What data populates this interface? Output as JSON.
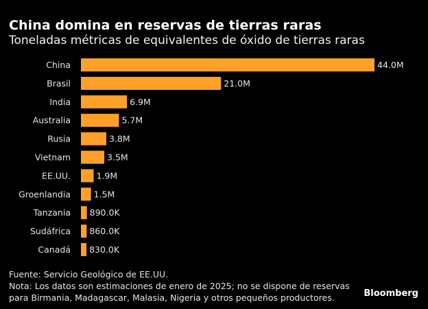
{
  "chart_data": {
    "type": "bar",
    "orientation": "horizontal",
    "title": "China domina en reservas de tierras raras",
    "subtitle": "Toneladas métricas de equivalentes de óxido de tierras raras",
    "xlabel": "",
    "ylabel": "",
    "categories": [
      "China",
      "Brasil",
      "India",
      "Australia",
      "Rusia",
      "Vietnam",
      "EE.UU.",
      "Groenlandia",
      "Tanzania",
      "Sudáfrica",
      "Canadá"
    ],
    "values": [
      44000000,
      21000000,
      6900000,
      5700000,
      3800000,
      3500000,
      1900000,
      1500000,
      890000,
      860000,
      830000
    ],
    "data_labels": [
      "44.0M",
      "21.0M",
      "6.9M",
      "5.7M",
      "3.8M",
      "3.5M",
      "1.9M",
      "1.5M",
      "890.0K",
      "860.0K",
      "830.0K"
    ],
    "xlim": [
      0,
      44000000
    ],
    "grid": false,
    "legend": "none",
    "bar_color": "#FFA029"
  },
  "footer": {
    "source": "Fuente: Servicio Geológico de EE.UU.",
    "note_line1": "Nota: Los datos son estimaciones de enero de 2025; no se dispone de reservas",
    "note_line2": "para Birmania, Madagascar, Malasia, Nigeria y otros pequeños productores."
  },
  "brand": "Bloomberg"
}
